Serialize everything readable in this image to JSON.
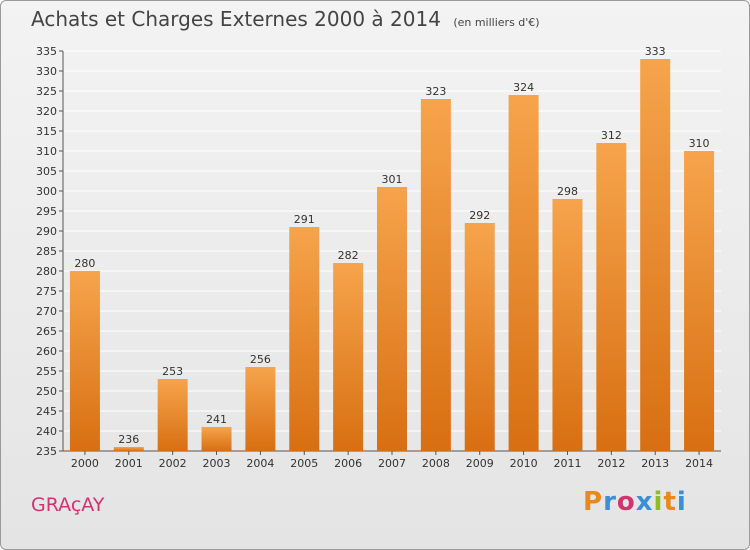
{
  "title": "Achats et Charges Externes 2000 à 2014",
  "unit_note": "(en milliers d'€)",
  "city": "GRAçAY",
  "brand": {
    "letters": [
      "P",
      "r",
      "o",
      "x",
      "i",
      "t",
      "i"
    ],
    "colors": [
      "#e8891c",
      "#3a8fd6",
      "#d4316e",
      "#3a8fd6",
      "#8dbb2c",
      "#e8891c",
      "#3a8fd6"
    ]
  },
  "colors": {
    "bar_top": "#f6a44c",
    "bar_bottom": "#d86f12",
    "grid": "#ffffff",
    "city": "#d4316e"
  },
  "chart_data": {
    "type": "bar",
    "title": "Achats et Charges Externes 2000 à 2014",
    "subtitle": "(en milliers d'€)",
    "categories": [
      "2000",
      "2001",
      "2002",
      "2003",
      "2004",
      "2005",
      "2006",
      "2007",
      "2008",
      "2009",
      "2010",
      "2011",
      "2012",
      "2013",
      "2014"
    ],
    "values": [
      280,
      236,
      253,
      241,
      256,
      291,
      282,
      301,
      323,
      292,
      324,
      298,
      312,
      333,
      310
    ],
    "ylim": [
      235,
      335
    ],
    "yticks": [
      235,
      240,
      245,
      250,
      255,
      260,
      265,
      270,
      275,
      280,
      285,
      290,
      295,
      300,
      305,
      310,
      315,
      320,
      325,
      330,
      335
    ],
    "grid": true,
    "xlabel": "",
    "ylabel": ""
  }
}
